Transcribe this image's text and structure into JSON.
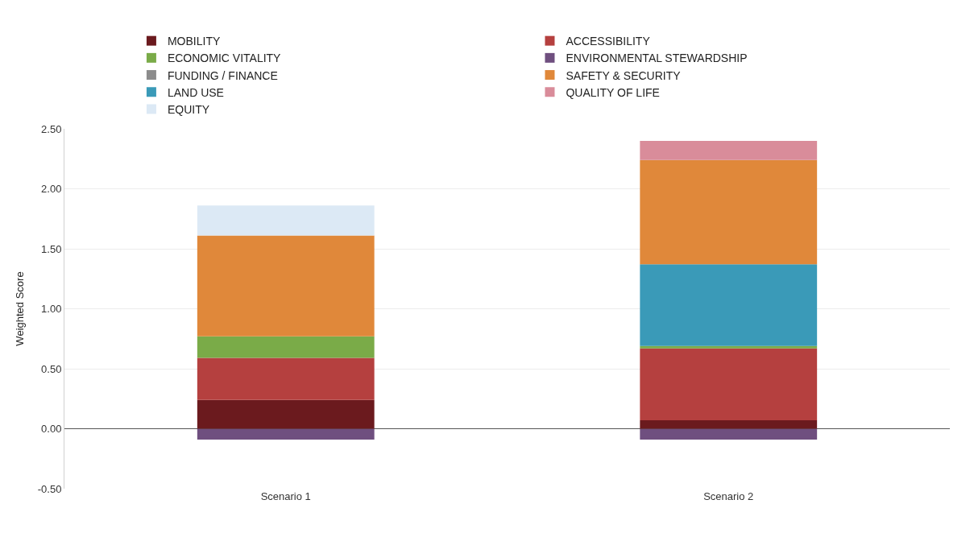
{
  "chart_data": {
    "type": "bar",
    "stacked": true,
    "ylabel": "Weighted Score",
    "categories": [
      "Scenario 1",
      "Scenario 2"
    ],
    "series": [
      {
        "name": "ENVIRONMENTAL STEWARDSHIP",
        "color": "#6f4f7f",
        "values": [
          -0.09,
          -0.09
        ]
      },
      {
        "name": "MOBILITY",
        "color": "#6b1a1e",
        "values": [
          0.24,
          0.07
        ]
      },
      {
        "name": "ACCESSIBILITY",
        "color": "#b5403f",
        "values": [
          0.35,
          0.6
        ]
      },
      {
        "name": "ECONOMIC VITALITY",
        "color": "#7aab48",
        "values": [
          0.18,
          0.02
        ]
      },
      {
        "name": "FUNDING / FINANCE",
        "color": "#8c8c8c",
        "values": [
          null,
          null
        ]
      },
      {
        "name": "LAND USE",
        "color": "#3a9ab8",
        "values": [
          null,
          0.68
        ]
      },
      {
        "name": "SAFETY & SECURITY",
        "color": "#e0883a",
        "values": [
          0.84,
          0.87
        ]
      },
      {
        "name": "QUALITY OF LIFE",
        "color": "#d98c9a",
        "values": [
          null,
          0.16
        ]
      },
      {
        "name": "EQUITY",
        "color": "#dce9f5",
        "values": [
          0.25,
          null
        ]
      }
    ],
    "ylim": [
      -0.5,
      2.5
    ],
    "yticks": [
      {
        "value": -0.5,
        "label": "-0.50"
      },
      {
        "value": 0,
        "label": "0.00"
      },
      {
        "value": 0.5,
        "label": "0.50"
      },
      {
        "value": 1,
        "label": "1.00"
      },
      {
        "value": 1.5,
        "label": "1.50"
      },
      {
        "value": 2,
        "label": "2.00"
      },
      {
        "value": 2.5,
        "label": "2.50"
      }
    ],
    "grid": "y",
    "legend": "top"
  }
}
